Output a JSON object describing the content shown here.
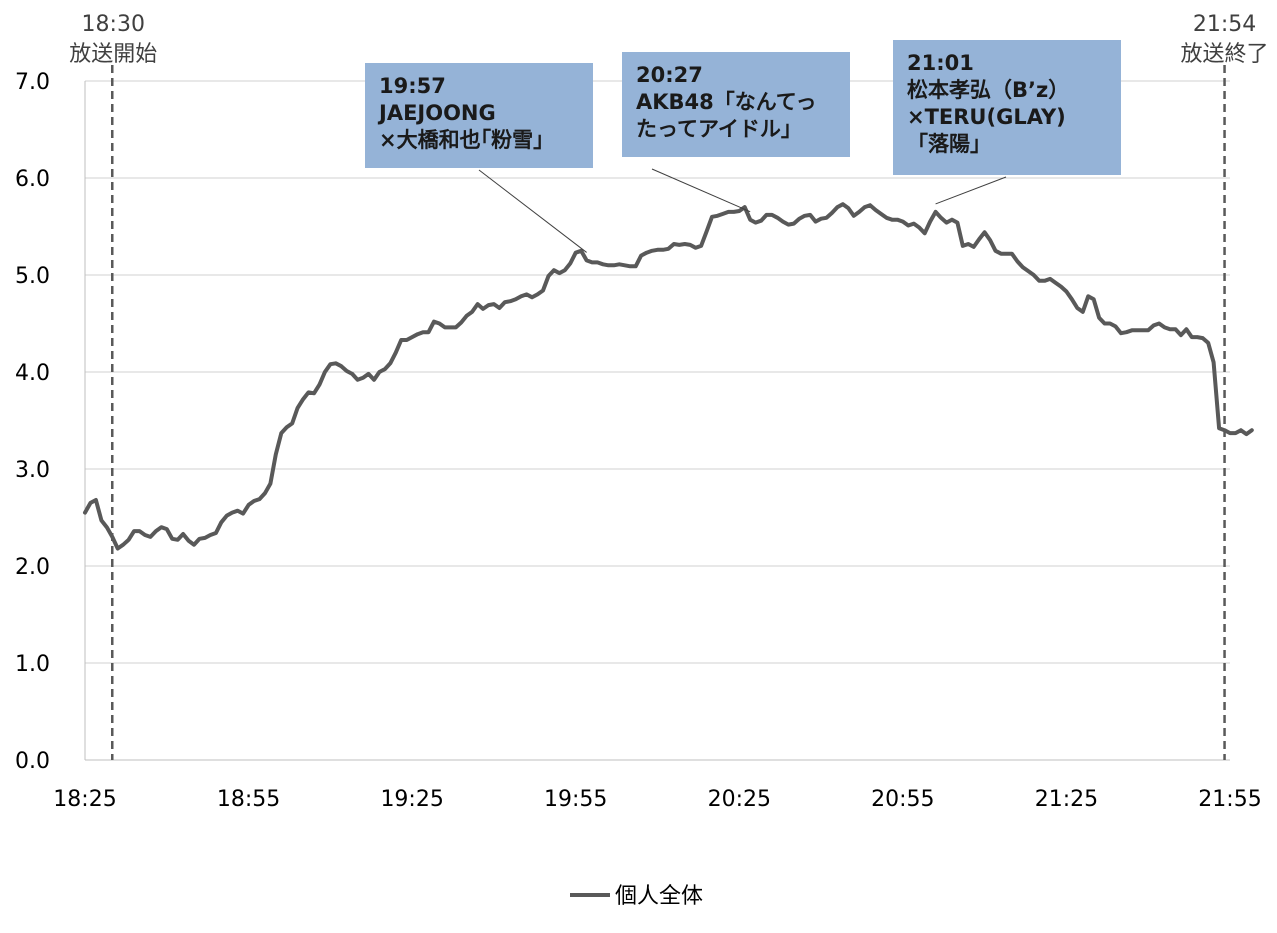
{
  "chart_data": {
    "type": "line",
    "title": "",
    "xlabel": "",
    "ylabel": "",
    "ylim": [
      0,
      7
    ],
    "y_ticks": [
      "0.0",
      "1.0",
      "2.0",
      "3.0",
      "4.0",
      "5.0",
      "6.0",
      "7.0"
    ],
    "x_ticks": [
      "18:25",
      "18:55",
      "19:25",
      "19:55",
      "20:25",
      "20:55",
      "21:25",
      "21:55"
    ],
    "grid": "horizontal",
    "legend_position": "bottom",
    "series": [
      {
        "name": "個人全体",
        "color": "#595959",
        "x_start": "18:25",
        "x_step_minutes": 1,
        "values": [
          2.55,
          2.65,
          2.68,
          2.47,
          2.4,
          2.3,
          2.18,
          2.22,
          2.27,
          2.36,
          2.36,
          2.32,
          2.3,
          2.36,
          2.4,
          2.38,
          2.28,
          2.27,
          2.33,
          2.26,
          2.22,
          2.28,
          2.29,
          2.32,
          2.34,
          2.45,
          2.52,
          2.55,
          2.57,
          2.54,
          2.63,
          2.67,
          2.69,
          2.75,
          2.85,
          3.15,
          3.37,
          3.43,
          3.47,
          3.63,
          3.72,
          3.79,
          3.78,
          3.87,
          4.0,
          4.08,
          4.09,
          4.06,
          4.01,
          3.98,
          3.92,
          3.94,
          3.98,
          3.92,
          4.0,
          4.03,
          4.09,
          4.2,
          4.33,
          4.33,
          4.36,
          4.39,
          4.41,
          4.41,
          4.52,
          4.5,
          4.46,
          4.46,
          4.46,
          4.51,
          4.58,
          4.62,
          4.7,
          4.65,
          4.69,
          4.7,
          4.66,
          4.72,
          4.73,
          4.75,
          4.78,
          4.8,
          4.77,
          4.8,
          4.84,
          4.99,
          5.05,
          5.02,
          5.05,
          5.12,
          5.23,
          5.25,
          5.15,
          5.13,
          5.13,
          5.11,
          5.1,
          5.1,
          5.11,
          5.1,
          5.09,
          5.09,
          5.2,
          5.23,
          5.25,
          5.26,
          5.26,
          5.27,
          5.32,
          5.31,
          5.32,
          5.31,
          5.28,
          5.3,
          5.45,
          5.6,
          5.61,
          5.63,
          5.65,
          5.65,
          5.66,
          5.7,
          5.57,
          5.54,
          5.56,
          5.62,
          5.62,
          5.59,
          5.55,
          5.52,
          5.53,
          5.58,
          5.61,
          5.62,
          5.55,
          5.58,
          5.59,
          5.64,
          5.7,
          5.73,
          5.69,
          5.61,
          5.65,
          5.7,
          5.72,
          5.67,
          5.63,
          5.59,
          5.57,
          5.57,
          5.55,
          5.51,
          5.53,
          5.49,
          5.43,
          5.55,
          5.65,
          5.59,
          5.54,
          5.57,
          5.54,
          5.3,
          5.32,
          5.29,
          5.37,
          5.44,
          5.36,
          5.25,
          5.22,
          5.22,
          5.22,
          5.14,
          5.08,
          5.04,
          5.0,
          4.94,
          4.94,
          4.96,
          4.92,
          4.88,
          4.83,
          4.75,
          4.66,
          4.62,
          4.78,
          4.75,
          4.56,
          4.5,
          4.5,
          4.47,
          4.4,
          4.41,
          4.43,
          4.43,
          4.43,
          4.43,
          4.48,
          4.5,
          4.46,
          4.44,
          4.44,
          4.38,
          4.44,
          4.36,
          4.36,
          4.35,
          4.3,
          4.1,
          3.42,
          3.4,
          3.37,
          3.37,
          3.4,
          3.36,
          3.4
        ]
      }
    ],
    "markers": [
      {
        "time": "18:30",
        "label": "放送開始"
      },
      {
        "time": "21:54",
        "label": "放送終了"
      }
    ],
    "annotations": [
      {
        "time": "19:57",
        "lines": [
          "19:57",
          "JAEJOONG",
          "×大橋和也｢粉雪｣"
        ]
      },
      {
        "time": "20:27",
        "lines": [
          "20:27",
          "AKB48「なんてっ",
          "たってアイドル」"
        ]
      },
      {
        "time": "21:01",
        "lines": [
          "21:01",
          "松本孝弘（B’z）",
          "×TERU(GLAY)",
          "「落陽」"
        ]
      }
    ]
  }
}
